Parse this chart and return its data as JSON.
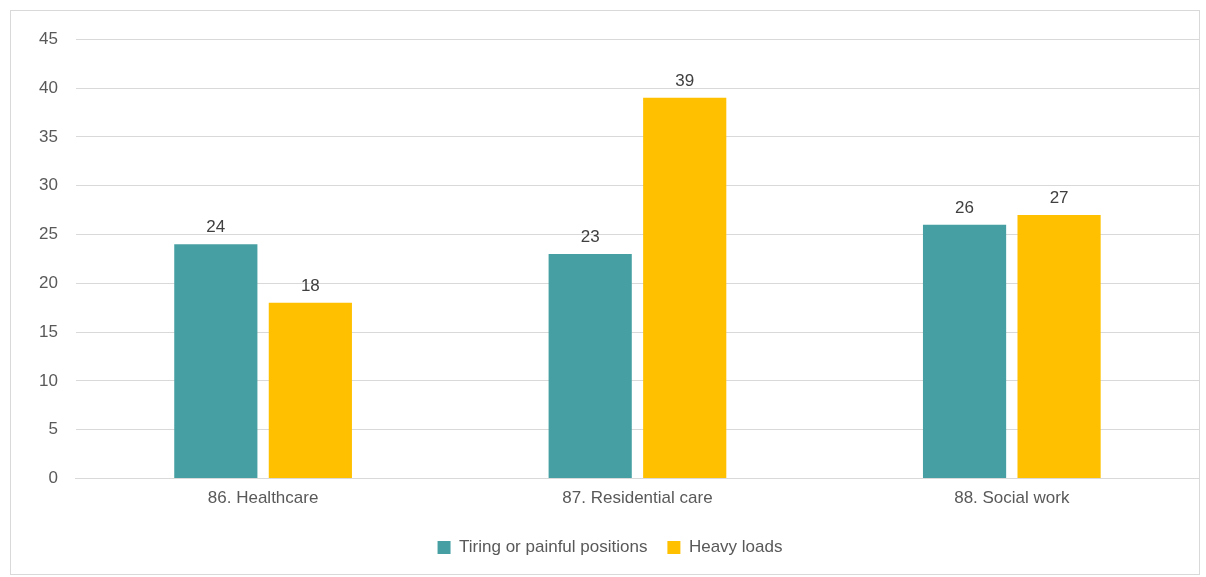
{
  "chart_data": {
    "type": "bar",
    "categories": [
      "86. Healthcare",
      "87. Residential care",
      "88. Social work"
    ],
    "series": [
      {
        "name": "Tiring or painful positions",
        "color": "#46a0a3",
        "values": [
          24,
          23,
          26
        ]
      },
      {
        "name": "Heavy loads",
        "color": "#ffc000",
        "values": [
          18,
          39,
          27
        ]
      }
    ],
    "ylim": [
      0,
      45
    ],
    "yticks": [
      0,
      5,
      10,
      15,
      20,
      25,
      30,
      35,
      40,
      45
    ],
    "grid": "y",
    "legend": "bottom",
    "data_labels": true
  }
}
